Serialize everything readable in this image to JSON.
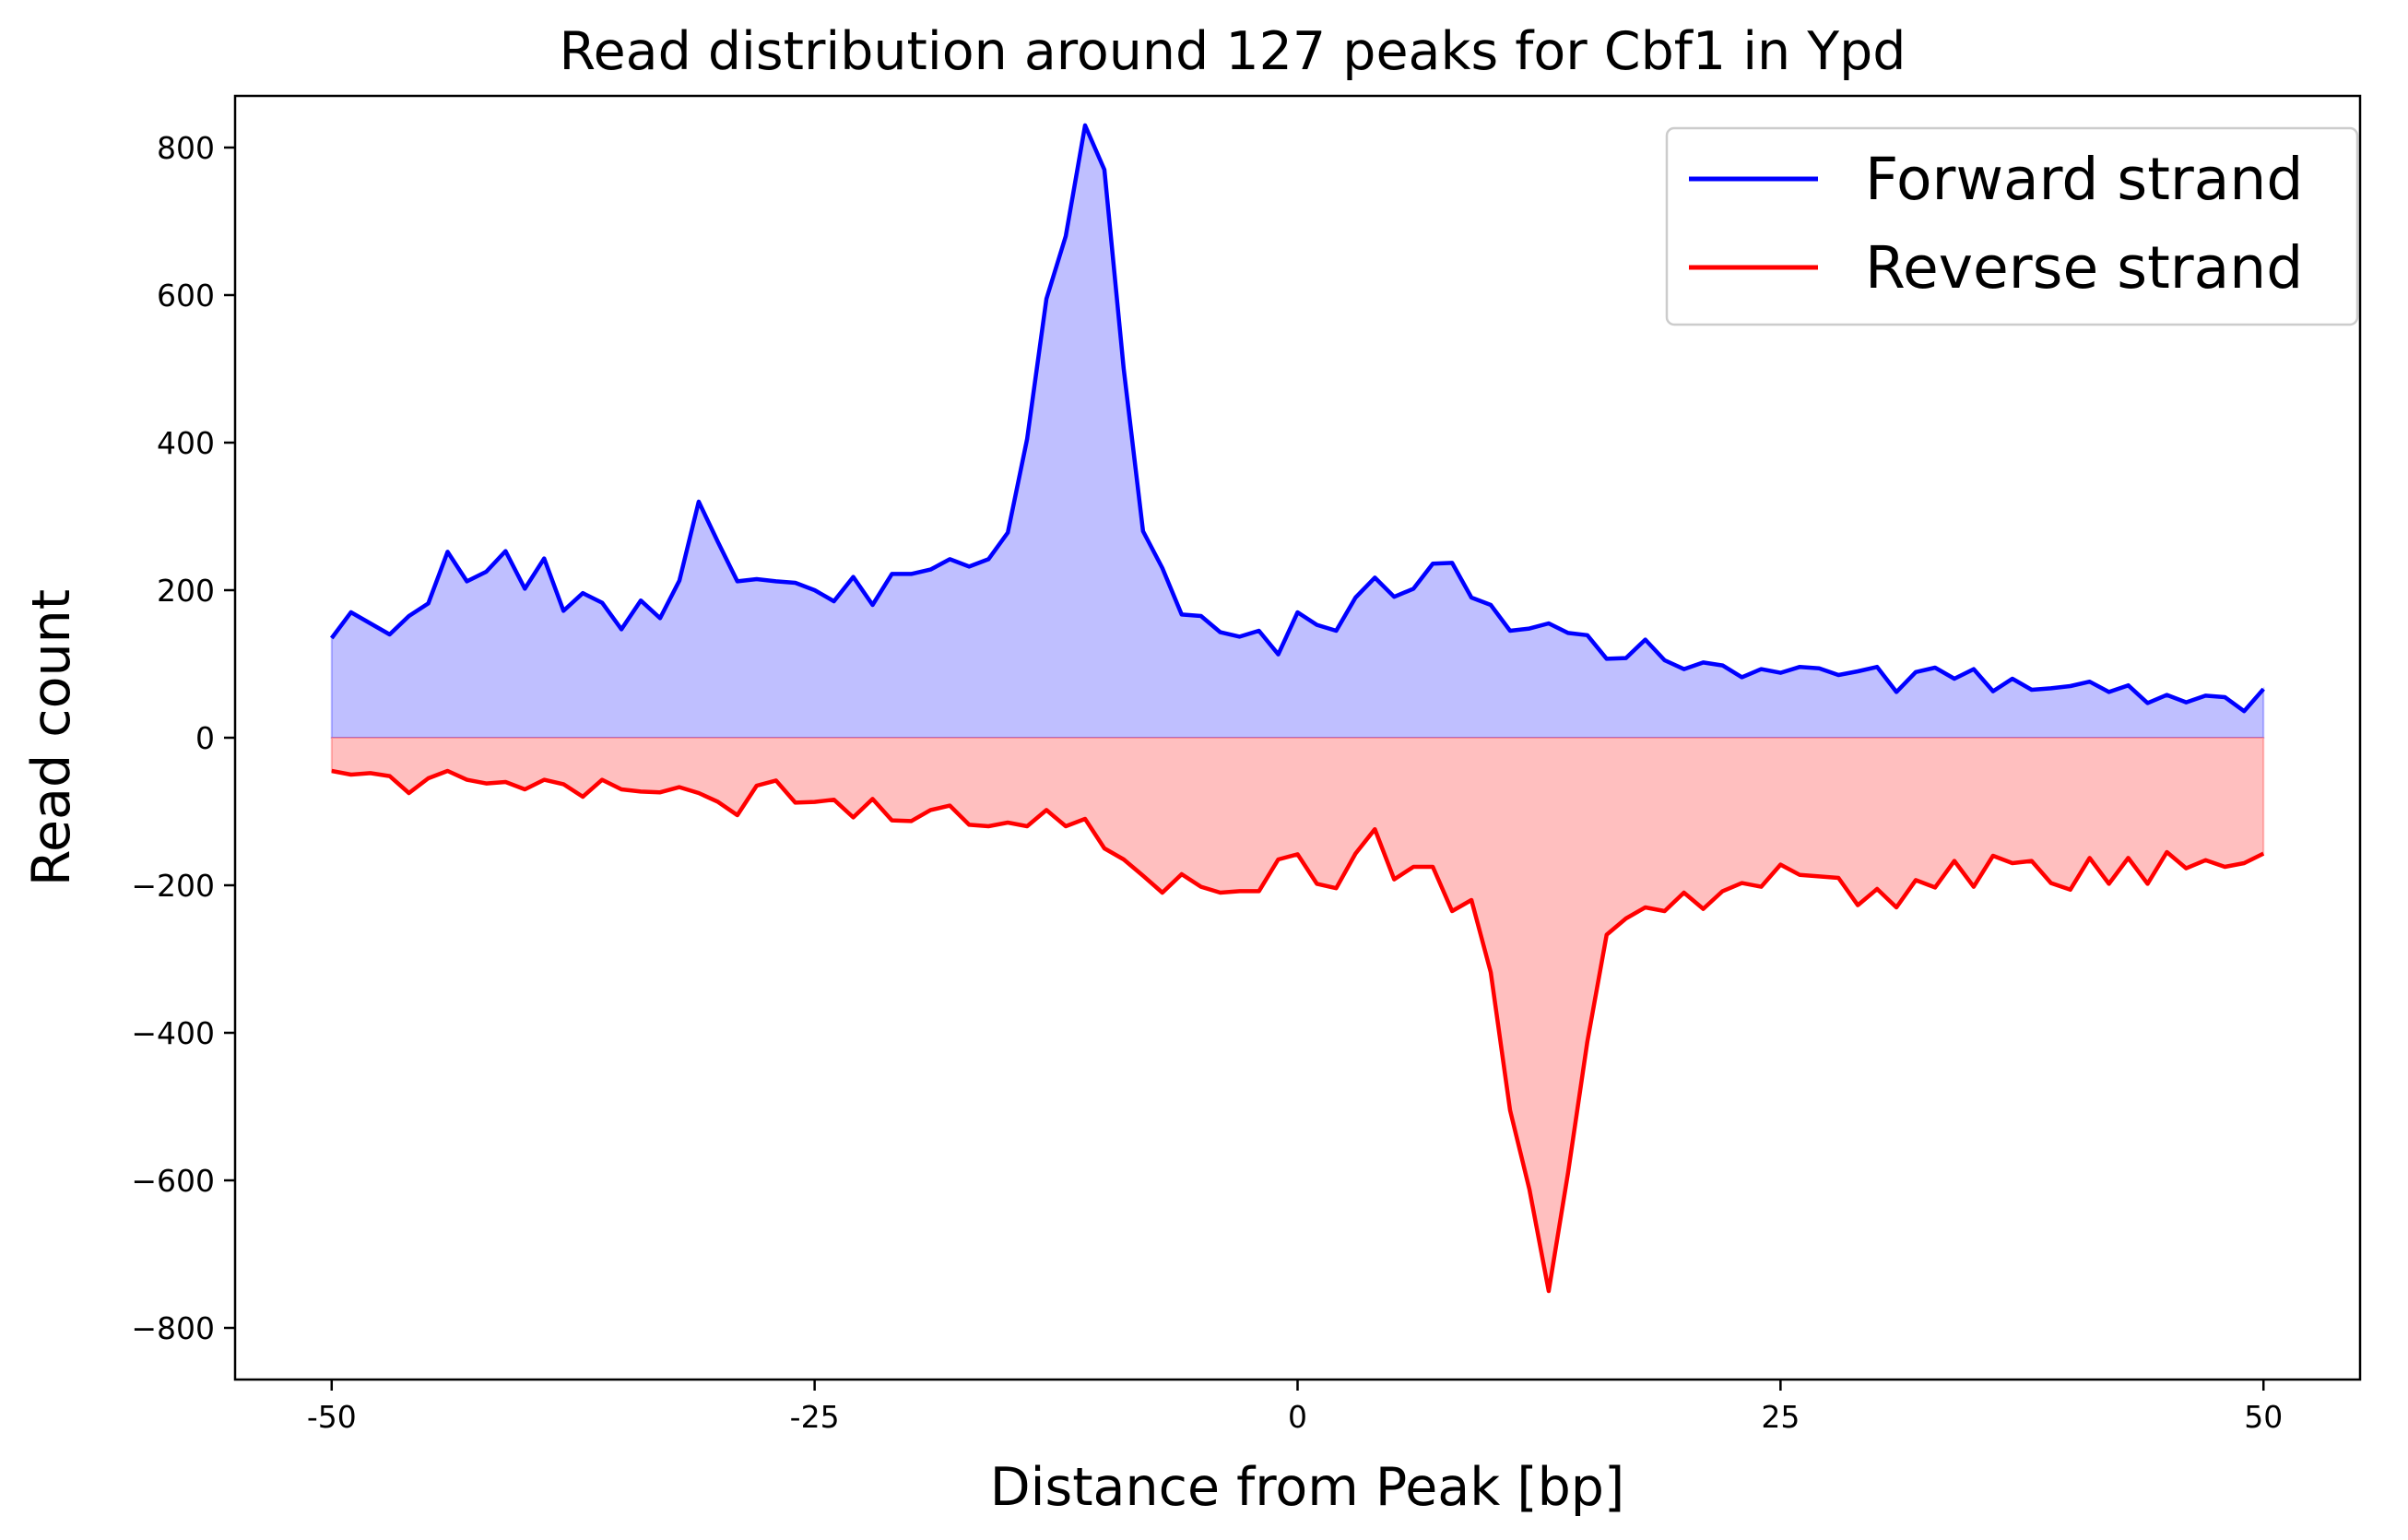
{
  "chart_data": {
    "type": "area",
    "title": "Read distribution around 127 peaks for Cbf1 in Ypd",
    "xlabel": "Distance from Peak [bp]",
    "ylabel": "Read count",
    "xlim": [
      -55,
      55
    ],
    "ylim": [
      -870,
      870
    ],
    "x_ticks": [
      -50,
      -25,
      0,
      25,
      50
    ],
    "x_tick_labels": [
      "-50",
      "-25",
      "0",
      "25",
      "50"
    ],
    "y_ticks": [
      800,
      600,
      400,
      200,
      0,
      -200,
      -400,
      -600,
      -800
    ],
    "y_tick_labels": [
      "800",
      "600",
      "400",
      "200",
      "0",
      "−200",
      "−400",
      "−600",
      "−800"
    ],
    "grid": false,
    "legend_position": "top-right",
    "series": [
      {
        "name": "Forward strand",
        "color": "#0000ff",
        "fill_color": "#bfbfff",
        "x": [
          -50,
          -49,
          -48,
          -47,
          -46,
          -45,
          -44,
          -43,
          -42,
          -41,
          -40,
          -39,
          -38,
          -37,
          -36,
          -35,
          -34,
          -33,
          -32,
          -31,
          -30,
          -29,
          -28,
          -27,
          -26,
          -25,
          -24,
          -23,
          -22,
          -21,
          -20,
          -19,
          -18,
          -17,
          -16,
          -15,
          -14,
          -13,
          -12,
          -11,
          -10,
          -9,
          -8,
          -7,
          -6,
          -5,
          -4,
          -3,
          -2,
          -1,
          0,
          1,
          2,
          3,
          4,
          5,
          6,
          7,
          8,
          9,
          10,
          11,
          12,
          13,
          14,
          15,
          16,
          17,
          18,
          19,
          20,
          21,
          22,
          23,
          24,
          25,
          26,
          27,
          28,
          29,
          30,
          31,
          32,
          33,
          34,
          35,
          36,
          37,
          38,
          39,
          40,
          41,
          42,
          43,
          44,
          45,
          46,
          47,
          48,
          49,
          50
        ],
        "values": [
          135,
          170,
          155,
          140,
          165,
          182,
          252,
          212,
          225,
          253,
          202,
          243,
          172,
          196,
          183,
          147,
          186,
          162,
          213,
          320,
          265,
          212,
          215,
          212,
          210,
          200,
          185,
          218,
          180,
          222,
          222,
          228,
          242,
          232,
          242,
          278,
          405,
          595,
          680,
          830,
          770,
          500,
          280,
          230,
          167,
          165,
          143,
          137,
          145,
          113,
          170,
          153,
          145,
          190,
          217,
          191,
          202,
          236,
          237,
          190,
          180,
          145,
          148,
          155,
          142,
          139,
          107,
          108,
          133,
          105,
          93,
          102,
          98,
          82,
          93,
          88,
          96,
          94,
          85,
          90,
          96,
          62,
          89,
          95,
          80,
          93,
          63,
          80,
          65,
          67,
          70,
          76,
          62,
          71,
          47,
          58,
          48,
          57,
          55,
          36,
          66
        ]
      },
      {
        "name": "Reverse strand",
        "color": "#ff0000",
        "fill_color": "#ffbfbf",
        "x": [
          -50,
          -49,
          -48,
          -47,
          -46,
          -45,
          -44,
          -43,
          -42,
          -41,
          -40,
          -39,
          -38,
          -37,
          -36,
          -35,
          -34,
          -33,
          -32,
          -31,
          -30,
          -29,
          -28,
          -27,
          -26,
          -25,
          -24,
          -23,
          -22,
          -21,
          -20,
          -19,
          -18,
          -17,
          -16,
          -15,
          -14,
          -13,
          -12,
          -11,
          -10,
          -9,
          -8,
          -7,
          -6,
          -5,
          -4,
          -3,
          -2,
          -1,
          0,
          1,
          2,
          3,
          4,
          5,
          6,
          7,
          8,
          9,
          10,
          11,
          12,
          13,
          14,
          15,
          16,
          17,
          18,
          19,
          20,
          21,
          22,
          23,
          24,
          25,
          26,
          27,
          28,
          29,
          30,
          31,
          32,
          33,
          34,
          35,
          36,
          37,
          38,
          39,
          40,
          41,
          42,
          43,
          44,
          45,
          46,
          47,
          48,
          49,
          50
        ],
        "values": [
          -45,
          -50,
          -48,
          -52,
          -75,
          -55,
          -45,
          -57,
          -62,
          -60,
          -70,
          -57,
          -63,
          -80,
          -57,
          -70,
          -73,
          -74,
          -67,
          -75,
          -87,
          -105,
          -65,
          -58,
          -88,
          -87,
          -84,
          -108,
          -83,
          -112,
          -113,
          -98,
          -92,
          -118,
          -120,
          -115,
          -120,
          -98,
          -120,
          -110,
          -150,
          -165,
          -187,
          -210,
          -185,
          -202,
          -210,
          -208,
          -208,
          -165,
          -158,
          -198,
          -204,
          -157,
          -124,
          -192,
          -175,
          -175,
          -235,
          -220,
          -318,
          -505,
          -612,
          -750,
          -590,
          -412,
          -267,
          -245,
          -230,
          -235,
          -210,
          -232,
          -208,
          -197,
          -202,
          -172,
          -186,
          -188,
          -190,
          -227,
          -205,
          -230,
          -193,
          -203,
          -167,
          -202,
          -160,
          -170,
          -167,
          -197,
          -206,
          -163,
          -198,
          -163,
          -198,
          -155,
          -177,
          -166,
          -175,
          -170,
          -157
        ]
      }
    ]
  }
}
